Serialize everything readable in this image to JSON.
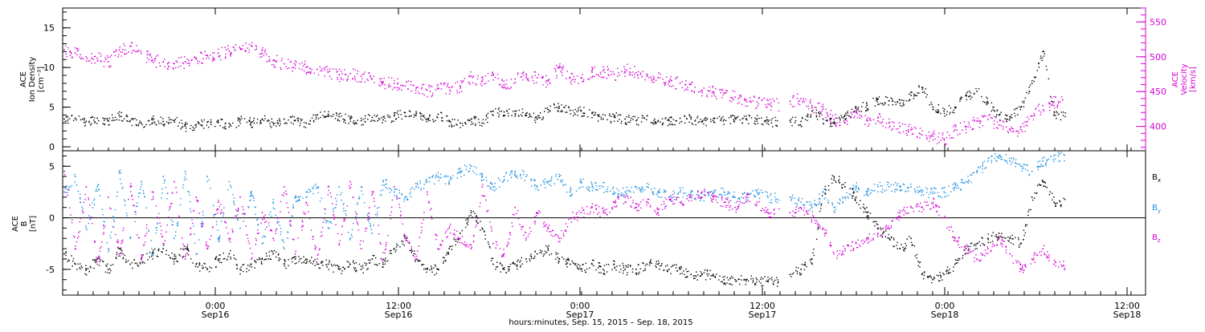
{
  "chart_data": [
    {
      "type": "scatter",
      "panel": "top",
      "y_left": {
        "label_lines": [
          "ACE",
          "Ion Density",
          "[cm⁻³]"
        ],
        "ticks": [
          0,
          5,
          10,
          15
        ],
        "ylim": [
          -0.5,
          17.5
        ]
      },
      "y_right": {
        "label_lines": [
          "ACE",
          "Velocity",
          "[km/s]"
        ],
        "ticks": [
          400,
          450,
          500,
          550
        ],
        "ylim": [
          365,
          570
        ],
        "color": "#d400d4"
      },
      "series": [
        {
          "name": "Ion Density",
          "color": "#000000",
          "axis": "left",
          "values": [
            3.5,
            3.6,
            3.2,
            3.6,
            3.3,
            4.0,
            3.3,
            3.0,
            3.4,
            3.2,
            3.3,
            2.6,
            2.8,
            3.1,
            3.3,
            2.5,
            3.4,
            3.1,
            3.5,
            3.0,
            3.5,
            3.3,
            3.0,
            4.0,
            4.1,
            3.8,
            3.5,
            3.3,
            3.7,
            3.4,
            3.9,
            4.3,
            4.0,
            3.5,
            4.1,
            3.2,
            3.0,
            3.5,
            3.0,
            4.5,
            4.4,
            4.5,
            4.2,
            3.5,
            4.7,
            5.1,
            4.6,
            4.5,
            4.3,
            3.5,
            3.8,
            3.5,
            3.3,
            3.9,
            3.2,
            3.3,
            3.6,
            3.5,
            3.2,
            3.3,
            3.4,
            3.6,
            3.5,
            3.5,
            3.2,
            null,
            3.3,
            3.2,
            4.5,
            3.5,
            3.0,
            4.0,
            5.0,
            5.2,
            6.0,
            5.8,
            5.5,
            6.5,
            7.5,
            5.0,
            4.5,
            5.0,
            6.5,
            7.0,
            5.5,
            4.0,
            3.8,
            5.0,
            8.0,
            12.0,
            4.0
          ]
        },
        {
          "name": "Velocity",
          "color": "#d400d4",
          "axis": "right",
          "values": [
            510,
            505,
            500,
            498,
            493,
            510,
            515,
            505,
            495,
            493,
            490,
            493,
            497,
            502,
            505,
            508,
            512,
            516,
            505,
            495,
            490,
            488,
            485,
            482,
            478,
            474,
            476,
            472,
            468,
            464,
            462,
            458,
            455,
            452,
            454,
            456,
            458,
            472,
            465,
            475,
            460,
            468,
            475,
            470,
            465,
            485,
            470,
            470,
            478,
            480,
            475,
            482,
            477,
            472,
            470,
            465,
            462,
            460,
            452,
            450,
            448,
            442,
            438,
            435,
            432,
            null,
            436,
            440,
            430,
            425,
            410,
            405,
            420,
            410,
            412,
            405,
            400,
            395,
            388,
            386,
            382,
            395,
            400,
            408,
            410,
            402,
            396,
            395,
            415,
            430,
            435
          ]
        }
      ]
    },
    {
      "type": "scatter",
      "panel": "bottom",
      "y_left": {
        "label_lines": [
          "ACE",
          "B",
          "[nT]"
        ],
        "ticks": [
          -5,
          0,
          5
        ],
        "ylim": [
          -7.5,
          6.5
        ]
      },
      "legend": [
        {
          "base": "B",
          "sub": "x",
          "color": "#000000"
        },
        {
          "base": "B",
          "sub": "y",
          "color": "#1c8fe0"
        },
        {
          "base": "B",
          "sub": "z",
          "color": "#d400d4"
        }
      ],
      "series": [
        {
          "name": "Bx",
          "color": "#000000",
          "values": [
            -3.5,
            -4.5,
            -5.0,
            -4.0,
            -5.0,
            -3.0,
            -4.5,
            -4.0,
            -3.5,
            -3.0,
            -4.0,
            -3.0,
            -4.5,
            -5.0,
            -4.0,
            -3.5,
            -5.0,
            -4.5,
            -4.0,
            -3.5,
            -4.5,
            -4.0,
            -4.0,
            -4.5,
            -4.5,
            -5.0,
            -4.5,
            -5.0,
            -4.0,
            -4.5,
            -3.0,
            -2.0,
            -4.0,
            -5.0,
            -5.0,
            -3.0,
            -1.5,
            0.5,
            -1.0,
            -4.5,
            -5.0,
            -4.5,
            -4.0,
            -3.5,
            -3.0,
            -4.0,
            -4.5,
            -5.0,
            -4.5,
            -5.0,
            -4.5,
            -5.0,
            -5.0,
            -4.5,
            -4.5,
            -5.0,
            -5.0,
            -5.5,
            -5.5,
            -5.5,
            -6.0,
            -6.0,
            -6.0,
            -6.0,
            -6.2,
            null,
            -5.5,
            -5.0,
            -4.0,
            2.5,
            4.0,
            3.0,
            2.0,
            0.5,
            -1.0,
            -2.0,
            -3.0,
            -2.0,
            -5.5,
            -6.0,
            -5.5,
            -4.5,
            -3.0,
            -2.5,
            -2.0,
            -1.5,
            -2.0,
            -2.5,
            2.0,
            3.5,
            1.5
          ]
        },
        {
          "name": "By",
          "color": "#1c8fe0",
          "values": [
            2.5,
            4.0,
            -1.0,
            3.0,
            -3.0,
            4.5,
            -2.0,
            3.5,
            -3.5,
            4.0,
            -2.0,
            4.5,
            -3.5,
            4.0,
            -2.0,
            3.5,
            -1.0,
            2.5,
            -2.5,
            1.5,
            -3.0,
            2.0,
            2.5,
            3.0,
            -1.0,
            3.0,
            -2.0,
            3.0,
            -1.5,
            3.5,
            2.5,
            2.0,
            3.0,
            3.5,
            4.0,
            3.5,
            4.5,
            5.0,
            4.0,
            3.0,
            4.0,
            4.5,
            4.0,
            3.0,
            3.5,
            4.0,
            2.5,
            3.5,
            3.0,
            3.0,
            2.5,
            2.5,
            3.0,
            3.0,
            2.5,
            2.0,
            2.5,
            2.5,
            2.0,
            2.5,
            2.5,
            2.0,
            2.0,
            2.5,
            2.0,
            null,
            2.0,
            1.5,
            1.0,
            2.5,
            1.0,
            2.0,
            3.0,
            2.5,
            3.0,
            3.0,
            3.0,
            3.0,
            2.5,
            2.5,
            2.5,
            3.0,
            3.5,
            4.5,
            5.5,
            6.0,
            5.5,
            5.0,
            4.5,
            5.5,
            6.0
          ]
        },
        {
          "name": "Bz",
          "color": "#d400d4",
          "values": [
            4.5,
            -3.0,
            3.0,
            -4.5,
            2.0,
            -3.5,
            3.0,
            -4.0,
            2.5,
            -2.5,
            3.5,
            -4.0,
            2.0,
            -3.0,
            1.5,
            -2.0,
            2.0,
            -4.0,
            0.5,
            -2.0,
            3.0,
            -3.5,
            1.5,
            -4.0,
            3.0,
            -2.5,
            3.5,
            -3.0,
            2.5,
            -4.0,
            3.0,
            -2.0,
            -4.0,
            2.5,
            -3.0,
            -1.0,
            -2.0,
            -3.0,
            3.0,
            -2.5,
            -3.5,
            1.0,
            -2.0,
            0.5,
            -1.0,
            -2.0,
            0.0,
            0.5,
            1.0,
            0.5,
            1.5,
            2.0,
            1.0,
            1.5,
            0.5,
            2.0,
            1.5,
            2.0,
            2.5,
            2.0,
            1.5,
            1.0,
            2.0,
            1.5,
            0.5,
            null,
            0.5,
            1.0,
            0.0,
            -1.0,
            -3.5,
            -3.0,
            -2.5,
            -2.0,
            -1.5,
            -1.0,
            0.5,
            1.0,
            1.0,
            1.5,
            0.0,
            -2.0,
            -3.0,
            -4.0,
            -3.0,
            -2.0,
            -3.5,
            -5.0,
            -4.0,
            -3.0,
            -4.5
          ]
        }
      ]
    }
  ],
  "x_axis": {
    "tick_labels": [
      {
        "time": "0:00",
        "date": "Sep16"
      },
      {
        "time": "12:00",
        "date": "Sep16"
      },
      {
        "time": "0:00",
        "date": "Sep17"
      },
      {
        "time": "12:00",
        "date": "Sep17"
      },
      {
        "time": "0:00",
        "date": "Sep18"
      },
      {
        "time": "12:00",
        "date": "Sep18"
      }
    ],
    "title": "hours:minutes, Sep. 15, 2015 – Sep. 18, 2015"
  }
}
